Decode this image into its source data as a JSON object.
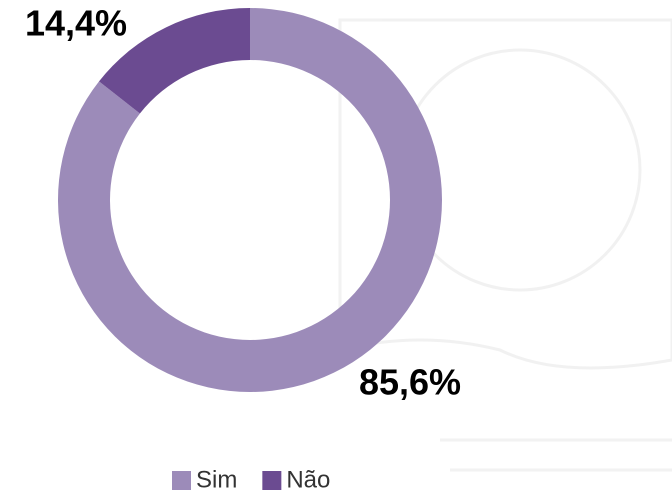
{
  "chart_data": {
    "type": "pie",
    "hole": true,
    "categories": [
      "Sim",
      "Não"
    ],
    "values": [
      85.6,
      14.4
    ],
    "value_labels": [
      "85,6%",
      "14,4%"
    ],
    "colors": [
      "#9c8bb9",
      "#6b4b91"
    ]
  }
}
